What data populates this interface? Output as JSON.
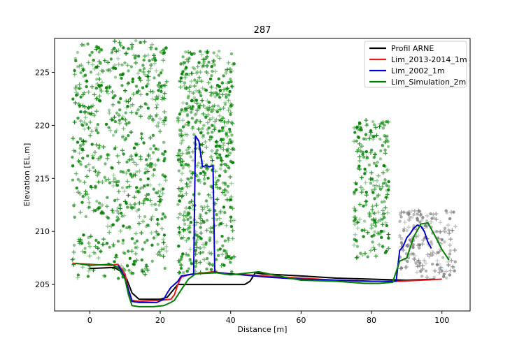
{
  "chart_data": {
    "type": "line",
    "title": "287",
    "xlabel": "Distance [m]",
    "ylabel": "Elevation [EL.m]",
    "xlim": [
      -10,
      108
    ],
    "ylim": [
      202.5,
      228.2
    ],
    "xticks": [
      0,
      20,
      40,
      60,
      80,
      100
    ],
    "yticks": [
      205,
      210,
      215,
      220,
      225
    ],
    "grid": false,
    "legend_position": "top-right",
    "series": [
      {
        "name": "Profil ARNE",
        "color": "#000000",
        "x": [
          0,
          7,
          9,
          10.5,
          12,
          14,
          20,
          22,
          23.5,
          25,
          28,
          44,
          45.5,
          47,
          49,
          60,
          70,
          80,
          90,
          98
        ],
        "y": [
          206.5,
          206.6,
          206.2,
          205.5,
          204.2,
          203.6,
          203.6,
          203.8,
          204.4,
          205.0,
          205.0,
          205.0,
          205.3,
          206.1,
          206.0,
          205.8,
          205.6,
          205.5,
          205.4,
          205.5
        ]
      },
      {
        "name": "Lim_2013-2014_1m",
        "color": "#e41a1c",
        "x": [
          -5,
          0,
          6,
          8,
          10,
          11,
          12,
          14,
          20,
          23,
          24,
          25,
          26,
          28,
          30,
          35,
          40,
          50,
          60,
          70,
          80,
          88,
          100
        ],
        "y": [
          207.0,
          206.9,
          206.8,
          206.9,
          206.0,
          204.5,
          203.5,
          203.4,
          203.5,
          203.6,
          204.0,
          205.0,
          205.7,
          205.9,
          206.0,
          206.2,
          206.0,
          205.8,
          205.6,
          205.4,
          205.3,
          205.3,
          205.5
        ]
      },
      {
        "name": "Lim_2002_1m",
        "color": "#0000cc",
        "x": [
          8,
          9,
          10,
          11,
          12,
          14,
          19,
          21,
          22,
          23,
          24,
          25,
          26,
          29.5,
          30,
          31,
          32,
          33,
          34,
          35,
          35.5,
          36,
          40,
          50,
          60,
          70,
          80,
          87,
          88,
          89,
          90,
          91,
          92,
          93,
          94,
          95,
          96,
          97
        ],
        "y": [
          206.8,
          206.3,
          205.5,
          204.5,
          203.4,
          203.3,
          203.3,
          203.6,
          204.2,
          204.7,
          205.0,
          205.3,
          205.8,
          206.0,
          219.0,
          218.5,
          216.1,
          216.2,
          216.1,
          216.2,
          206.2,
          206.1,
          206.0,
          205.7,
          205.5,
          205.4,
          205.3,
          205.3,
          208.2,
          208.6,
          209.4,
          209.8,
          210.3,
          210.6,
          210.5,
          210.0,
          209.0,
          208.4
        ]
      },
      {
        "name": "Lim_Simulation_2m",
        "color": "#008000",
        "x": [
          -4,
          0,
          6,
          8,
          10,
          11,
          12,
          14,
          18,
          21,
          23,
          24,
          26,
          28,
          30,
          36,
          40,
          48,
          55,
          60,
          70,
          78,
          82,
          86,
          88,
          90,
          92,
          94,
          96,
          98,
          100,
          102
        ],
        "y": [
          207.0,
          206.8,
          206.9,
          206.6,
          205.5,
          204.0,
          203.0,
          202.9,
          202.9,
          203.0,
          203.3,
          203.5,
          204.5,
          205.5,
          206.0,
          206.1,
          205.9,
          206.2,
          205.7,
          205.4,
          205.3,
          205.1,
          205.1,
          205.2,
          207.2,
          207.5,
          209.5,
          210.7,
          210.8,
          209.6,
          208.3,
          207.3
        ]
      }
    ],
    "point_clouds": [
      {
        "name": "trees-left",
        "color": "#008000",
        "n": 700,
        "x_range": [
          -5,
          22
        ],
        "y_range": [
          205.5,
          228
        ]
      },
      {
        "name": "trees-center",
        "color": "#008000",
        "n": 600,
        "x_range": [
          25,
          41
        ],
        "y_range": [
          206,
          227
        ]
      },
      {
        "name": "tree-right",
        "color": "#008000",
        "n": 220,
        "x_range": [
          75,
          85
        ],
        "y_range": [
          207.5,
          220.5
        ]
      },
      {
        "name": "slope-right",
        "color": "#808080",
        "n": 180,
        "x_range": [
          88,
          104
        ],
        "y_range": [
          205.5,
          212
        ]
      }
    ]
  }
}
